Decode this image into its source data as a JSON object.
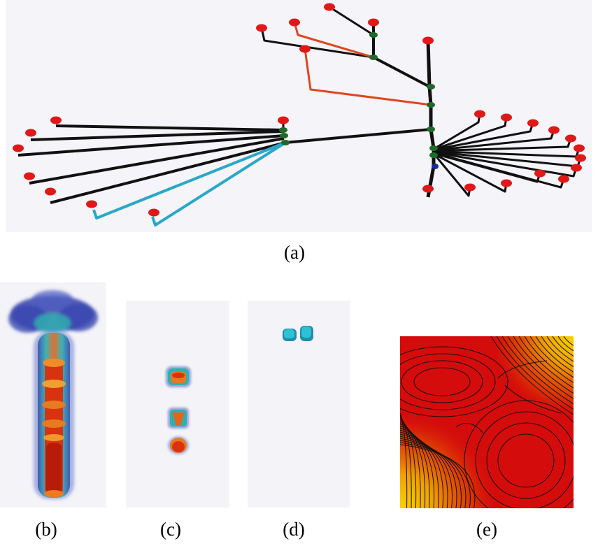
{
  "figure": {
    "panel_a": {
      "label": "(a)"
    },
    "panel_b": {
      "label": "(b)"
    },
    "panel_c": {
      "label": "(c)"
    },
    "panel_d": {
      "label": "(d)"
    },
    "panel_e": {
      "label": "(e)"
    }
  },
  "colors": {
    "node_leaf": "#e01818",
    "node_junction": "#1f6a2a",
    "node_root": "#1a2a9a",
    "edge_default": "#111111",
    "edge_highlight_orange": "#e0461e",
    "edge_highlight_cyan": "#2aa7c8",
    "panel_bg": "#f3f3f8",
    "iso_blue": "#2a3aa8",
    "iso_cyan": "#26b6c8",
    "iso_orange": "#e8621a",
    "contour_red": "#d40c0c",
    "contour_yellow": "#f4c400"
  }
}
